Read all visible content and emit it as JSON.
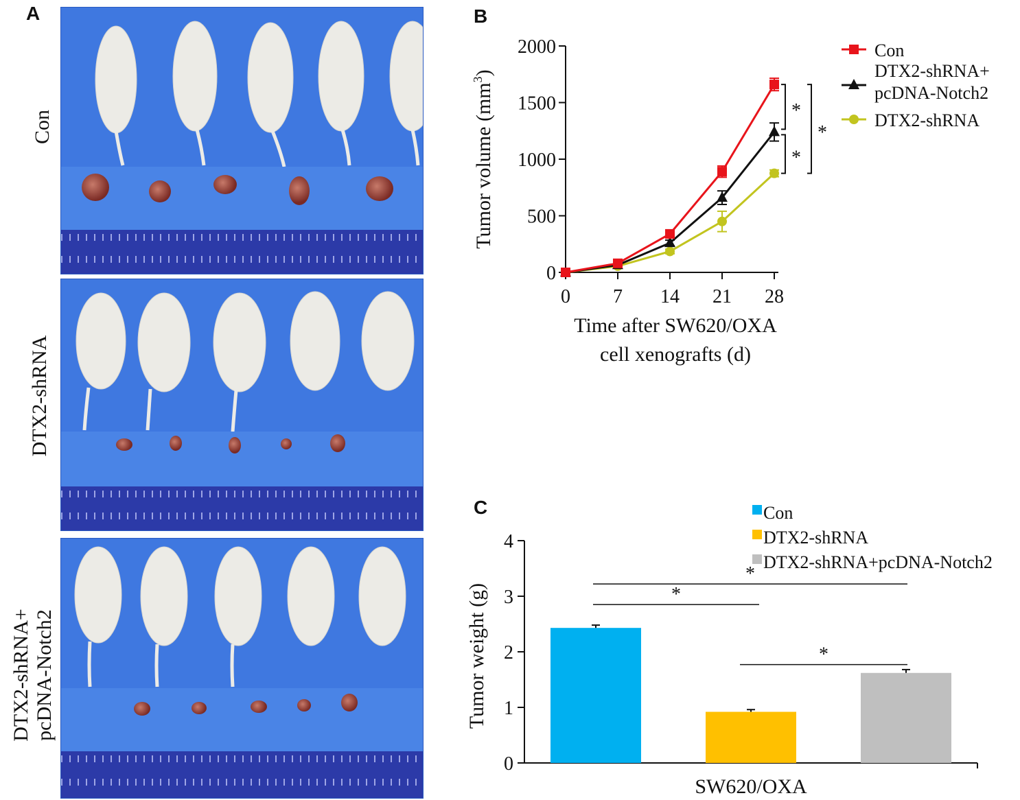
{
  "panels": {
    "A": {
      "letter": "A",
      "groups": [
        {
          "label": "Con"
        },
        {
          "label": "DTX2-shRNA"
        },
        {
          "label_line1": "DTX2-shRNA+",
          "label_line2": "pcDNA-Notch2"
        }
      ]
    },
    "B": {
      "letter": "B"
    },
    "C": {
      "letter": "C"
    }
  },
  "colors": {
    "photo_background": "#3f78e0",
    "con_line": "#e8141b",
    "notch2_line": "#111111",
    "shrna_line": "#c2c41f",
    "con_bar": "#00b0f0",
    "shrna_bar": "#ffc000",
    "notch2_bar": "#bfbfbf"
  },
  "chart_data": [
    {
      "type": "line",
      "panel": "B",
      "ylabel": "Tumor volume (mm",
      "ylabel_sup": "3",
      "ylabel_close": ")",
      "xlabel_line1": "Time after SW620/OXA",
      "xlabel_line2": "cell xenografts (d)",
      "x": [
        0,
        7,
        14,
        21,
        28
      ],
      "x_ticks": [
        "0",
        "7",
        "14",
        "21",
        "28"
      ],
      "y_ticks": [
        "0",
        "500",
        "1000",
        "1500",
        "2000"
      ],
      "ylim": [
        0,
        2000
      ],
      "xlim": [
        0,
        28
      ],
      "legend_position": "right",
      "series": [
        {
          "name": "Con",
          "marker": "square",
          "color": "#e8141b",
          "values": [
            0,
            80,
            340,
            890,
            1660
          ],
          "errors": [
            0,
            15,
            35,
            50,
            55
          ]
        },
        {
          "name_line1": "DTX2-shRNA+",
          "name_line2": "pcDNA-Notch2",
          "marker": "triangle",
          "color": "#111111",
          "values": [
            0,
            65,
            260,
            660,
            1240
          ],
          "errors": [
            0,
            10,
            25,
            60,
            80
          ]
        },
        {
          "name": "DTX2-shRNA",
          "marker": "circle",
          "color": "#c2c41f",
          "values": [
            0,
            55,
            185,
            450,
            875
          ],
          "errors": [
            0,
            10,
            20,
            90,
            30
          ]
        }
      ],
      "significance": [
        "*",
        "*",
        "*"
      ]
    },
    {
      "type": "bar",
      "panel": "C",
      "ylabel": "Tumor weight (g)",
      "xlabel": "SW620/OXA",
      "y_ticks": [
        "0",
        "1",
        "2",
        "3",
        "4"
      ],
      "ylim": [
        0,
        4
      ],
      "legend_position": "top",
      "categories": [
        "Con",
        "DTX2-shRNA",
        "DTX2-shRNA+pcDNA-Notch2"
      ],
      "values": [
        2.43,
        0.92,
        1.62
      ],
      "errors": [
        0.05,
        0.04,
        0.06
      ],
      "bar_colors": [
        "#00b0f0",
        "#ffc000",
        "#bfbfbf"
      ],
      "significance": [
        "*",
        "*",
        "*"
      ]
    }
  ]
}
